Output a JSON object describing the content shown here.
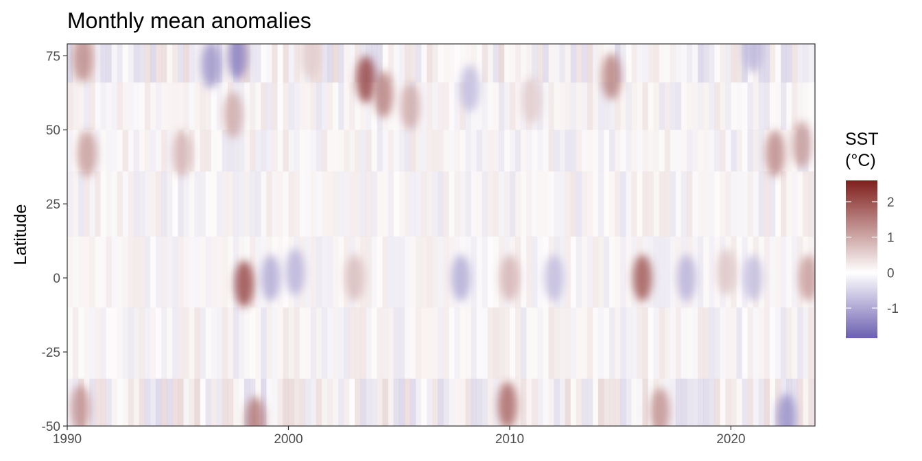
{
  "chart_data": {
    "type": "heatmap",
    "title": "Monthly mean anomalies",
    "xlabel": "",
    "ylabel": "Latitude",
    "xlim": [
      1990,
      2023.8
    ],
    "ylim": [
      -50,
      79
    ],
    "x_ticks": [
      1990,
      2000,
      2010,
      2020
    ],
    "y_ticks": [
      75,
      50,
      25,
      0,
      -25,
      -50
    ],
    "grid": false,
    "legend": {
      "placement": "right",
      "title_lines": [
        "SST",
        "(°C)"
      ],
      "range": [
        -1.85,
        2.6
      ],
      "ticks": [
        2,
        1,
        0,
        -1
      ],
      "colors": {
        "low": "#6b5fb0",
        "mid": "#ffffff",
        "high": "#7f1f1c"
      }
    },
    "features": [
      {
        "x": 1990.7,
        "y": 74,
        "value": 1.4
      },
      {
        "x": 1990.9,
        "y": 42,
        "value": 1.2
      },
      {
        "x": 1990.6,
        "y": -44,
        "value": 1.3
      },
      {
        "x": 1995.2,
        "y": 42,
        "value": 0.9
      },
      {
        "x": 1996.5,
        "y": 72,
        "value": -1.3
      },
      {
        "x": 1997.7,
        "y": 75,
        "value": -1.5
      },
      {
        "x": 1997.5,
        "y": 55,
        "value": 1.0
      },
      {
        "x": 1998.0,
        "y": -2,
        "value": 2.2
      },
      {
        "x": 1998.5,
        "y": -48,
        "value": 1.6
      },
      {
        "x": 1999.2,
        "y": 0,
        "value": -1.0
      },
      {
        "x": 2000.3,
        "y": 2,
        "value": -0.9
      },
      {
        "x": 2001.0,
        "y": 75,
        "value": 0.6
      },
      {
        "x": 2003.5,
        "y": 67,
        "value": 2.2
      },
      {
        "x": 2004.3,
        "y": 62,
        "value": 1.5
      },
      {
        "x": 2005.5,
        "y": 58,
        "value": 1.0
      },
      {
        "x": 2003.0,
        "y": 0,
        "value": 0.8
      },
      {
        "x": 2007.8,
        "y": 0,
        "value": -1.0
      },
      {
        "x": 2008.2,
        "y": 64,
        "value": -0.8
      },
      {
        "x": 2010.0,
        "y": 0,
        "value": 0.9
      },
      {
        "x": 2009.9,
        "y": -43,
        "value": 1.8
      },
      {
        "x": 2011.0,
        "y": 60,
        "value": 0.6
      },
      {
        "x": 2012.0,
        "y": 0,
        "value": -0.8
      },
      {
        "x": 2014.6,
        "y": 68,
        "value": 1.5
      },
      {
        "x": 2016.0,
        "y": 0,
        "value": 2.0
      },
      {
        "x": 2016.8,
        "y": -45,
        "value": 1.3
      },
      {
        "x": 2018.0,
        "y": 0,
        "value": -0.9
      },
      {
        "x": 2019.8,
        "y": 2,
        "value": 0.7
      },
      {
        "x": 2021.0,
        "y": 0,
        "value": -0.8
      },
      {
        "x": 2022.0,
        "y": 42,
        "value": 1.4
      },
      {
        "x": 2023.2,
        "y": 45,
        "value": 1.2
      },
      {
        "x": 2023.5,
        "y": 0,
        "value": 1.2
      },
      {
        "x": 2022.5,
        "y": -47,
        "value": -1.3
      },
      {
        "x": 2021.0,
        "y": 77,
        "value": -0.9
      }
    ]
  }
}
